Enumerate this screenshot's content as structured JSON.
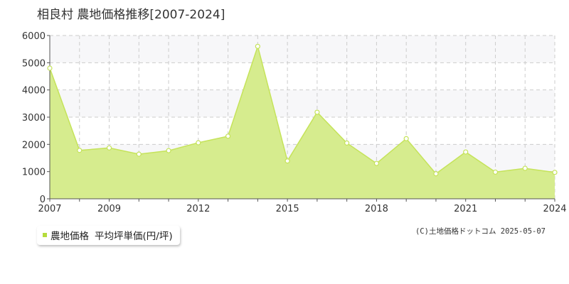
{
  "title": "相良村 農地価格推移[2007-2024]",
  "copyright": "(C)土地価格ドットコム 2025-05-07",
  "colors": {
    "area_fill": "#d6ec8e",
    "line": "#c5e35a",
    "marker_fill": "#ffffff",
    "grid": "#cccccc",
    "axis": "#555555",
    "legend_marker": "#b5dc3c"
  },
  "legend": {
    "series_label": "農地価格",
    "unit_label": "平均坪単価(円/坪)"
  },
  "chart_data": {
    "type": "area",
    "x": [
      2007,
      2008,
      2009,
      2010,
      2011,
      2012,
      2013,
      2014,
      2015,
      2016,
      2017,
      2018,
      2019,
      2020,
      2021,
      2022,
      2023,
      2024
    ],
    "values": [
      4800,
      1780,
      1870,
      1640,
      1770,
      2060,
      2300,
      5600,
      1390,
      3180,
      2050,
      1300,
      2210,
      920,
      1720,
      980,
      1120,
      970
    ],
    "xlim": [
      2007,
      2024
    ],
    "ylim": [
      0,
      6000
    ],
    "yticks": [
      0,
      1000,
      2000,
      3000,
      4000,
      5000,
      6000
    ],
    "xtick_labels": [
      2007,
      2009,
      2012,
      2015,
      2018,
      2021,
      2024
    ],
    "grid": true,
    "legend_position": "bottom-left"
  }
}
